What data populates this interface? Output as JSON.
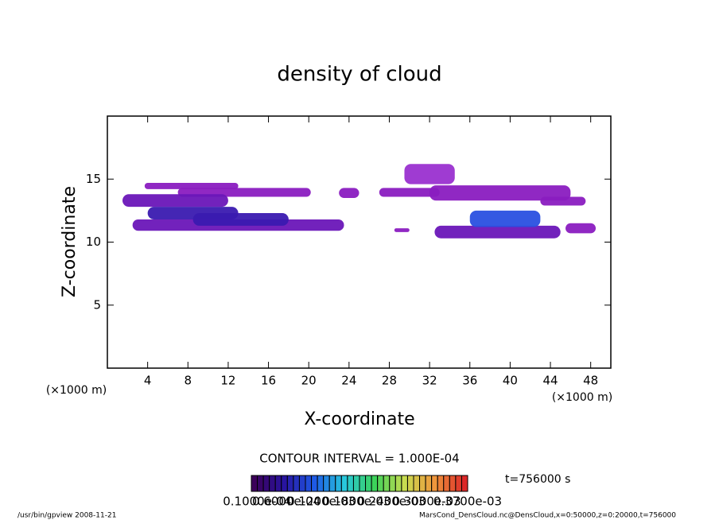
{
  "chart_data": {
    "type": "contour",
    "title": "density of cloud",
    "x_label": "X-coordinate",
    "y_label": "Z-coordinate",
    "x_unit": "(×1000 m)",
    "xlim": [
      0,
      50
    ],
    "ylim": [
      0,
      20
    ],
    "xticks": [
      4,
      8,
      12,
      16,
      20,
      24,
      28,
      32,
      36,
      40,
      44,
      48
    ],
    "yticks": [
      5,
      10,
      15
    ],
    "regions": [
      {
        "x": [
          3.7,
          13
        ],
        "z": [
          14.2,
          14.7
        ],
        "value": 2e-05,
        "color": "#8a1cc0"
      },
      {
        "x": [
          7,
          20.2
        ],
        "z": [
          13.6,
          14.3
        ],
        "value": 2e-05,
        "color": "#8a1cc0"
      },
      {
        "x": [
          1.5,
          12
        ],
        "z": [
          12.8,
          13.8
        ],
        "value": 3e-05,
        "color": "#6a16b8"
      },
      {
        "x": [
          2.5,
          23.5
        ],
        "z": [
          10.9,
          11.8
        ],
        "value": 3e-05,
        "color": "#6a16b8"
      },
      {
        "x": [
          4,
          13
        ],
        "z": [
          11.8,
          12.8
        ],
        "value": 5e-05,
        "color": "#3a1ab0"
      },
      {
        "x": [
          8.5,
          18
        ],
        "z": [
          11.3,
          12.3
        ],
        "value": 5e-05,
        "color": "#3a1ab0"
      },
      {
        "x": [
          23,
          25
        ],
        "z": [
          13.5,
          14.3
        ],
        "value": 2e-05,
        "color": "#8a1cc0"
      },
      {
        "x": [
          27,
          33
        ],
        "z": [
          13.6,
          14.3
        ],
        "value": 2e-05,
        "color": "#8a1cc0"
      },
      {
        "x": [
          29.5,
          34.5
        ],
        "z": [
          14.6,
          16.2
        ],
        "value": 2e-05,
        "color": "#9a30d0"
      },
      {
        "x": [
          32,
          46
        ],
        "z": [
          13.3,
          14.5
        ],
        "value": 2e-05,
        "color": "#8a1cc0"
      },
      {
        "x": [
          43,
          47.5
        ],
        "z": [
          12.9,
          13.6
        ],
        "value": 2e-05,
        "color": "#8a1cc0"
      },
      {
        "x": [
          28.5,
          30
        ],
        "z": [
          10.8,
          11.1
        ],
        "value": 2e-05,
        "color": "#8a1cc0"
      },
      {
        "x": [
          32.5,
          45
        ],
        "z": [
          10.3,
          11.3
        ],
        "value": 3e-05,
        "color": "#6a16b8"
      },
      {
        "x": [
          36,
          43
        ],
        "z": [
          11.2,
          12.5
        ],
        "value": 7e-05,
        "color": "#2a50e0"
      },
      {
        "x": [
          45.5,
          48.5
        ],
        "z": [
          10.7,
          11.5
        ],
        "value": 2e-05,
        "color": "#8a1cc0"
      }
    ],
    "contour_interval": "CONTOUR INTERVAL = 1.000E-04",
    "time_label": "t=756000 s",
    "clim": [
      0,
      0.00037
    ],
    "colorbar_labels": [
      {
        "value": 1e-05,
        "label": "0.1000e-04"
      },
      {
        "value": 6e-05,
        "label": "0.6000e-04"
      },
      {
        "value": 0.00012,
        "label": "0.1200e-03"
      },
      {
        "value": 0.00018,
        "label": "0.1800e-03"
      },
      {
        "value": 0.00024,
        "label": "0.2400e-03"
      },
      {
        "value": 0.0003,
        "label": "0.3000e-03"
      },
      {
        "value": 0.00037,
        "label": "0.3700e-03"
      }
    ],
    "footer_left": "/usr/bin/gpview  2008-11-21",
    "footer_right": "MarsCond_DensCloud.nc@DensCloud,x=0:50000,z=0:20000,t=756000"
  }
}
